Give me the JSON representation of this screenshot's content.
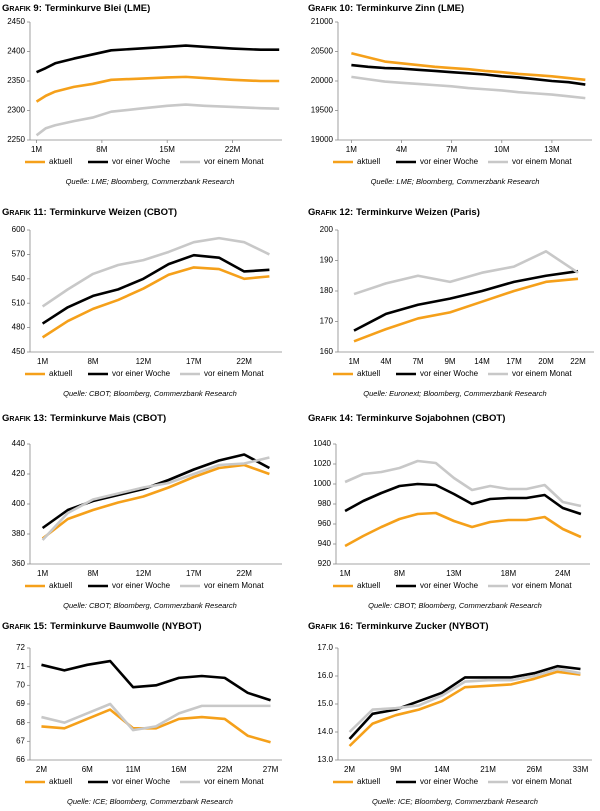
{
  "chart_data": [
    {
      "type": "line",
      "label": "Grafik 9:",
      "title": "Terminkurve Blei (LME)",
      "x": [
        1,
        2,
        3,
        5,
        7,
        9,
        12,
        15,
        17,
        19,
        22,
        25,
        27
      ],
      "xlim": [
        0.3,
        27.3
      ],
      "xticks": [
        {
          "value": 1,
          "label": "1M"
        },
        {
          "value": 8,
          "label": "8M"
        },
        {
          "value": 15,
          "label": "15M"
        },
        {
          "value": 22,
          "label": "22M"
        }
      ],
      "ylim": [
        2250,
        2450
      ],
      "yticks": [
        2250,
        2300,
        2350,
        2400,
        2450
      ],
      "series": [
        {
          "name": "aktuell",
          "color": "#f5a01a",
          "values": [
            2315,
            2325,
            2332,
            2340,
            2345,
            2352,
            2354,
            2356,
            2357,
            2355,
            2352,
            2350,
            2350
          ]
        },
        {
          "name": "vor einer Woche",
          "color": "#000000",
          "values": [
            2365,
            2372,
            2380,
            2388,
            2395,
            2402,
            2405,
            2408,
            2410,
            2408,
            2405,
            2403,
            2403
          ]
        },
        {
          "name": "vor einem Monat",
          "color": "#c8c8c8",
          "values": [
            2258,
            2270,
            2275,
            2282,
            2288,
            2298,
            2303,
            2308,
            2310,
            2308,
            2306,
            2304,
            2303
          ]
        }
      ],
      "source": "Quelle: LME; Bloomberg, Commerzbank Research"
    },
    {
      "type": "line",
      "label": "Grafik 10:",
      "title": "Terminkurve Zinn (LME)",
      "x": [
        1,
        2,
        3,
        4,
        5,
        6,
        7,
        8,
        9,
        10,
        11,
        12,
        13,
        14,
        15
      ],
      "xlim": [
        0.2,
        15.4
      ],
      "xticks": [
        {
          "value": 1,
          "label": "1M"
        },
        {
          "value": 4,
          "label": "4M"
        },
        {
          "value": 7,
          "label": "7M"
        },
        {
          "value": 10,
          "label": "10M"
        },
        {
          "value": 13,
          "label": "13M"
        }
      ],
      "ylim": [
        19000,
        21000
      ],
      "yticks": [
        19000,
        19500,
        20000,
        20500,
        21000
      ],
      "series": [
        {
          "name": "aktuell",
          "color": "#f5a01a",
          "values": [
            20470,
            20400,
            20330,
            20300,
            20270,
            20240,
            20220,
            20200,
            20170,
            20150,
            20120,
            20100,
            20080,
            20050,
            20020
          ]
        },
        {
          "name": "vor einer Woche",
          "color": "#000000",
          "values": [
            20270,
            20240,
            20220,
            20210,
            20190,
            20170,
            20150,
            20130,
            20110,
            20080,
            20060,
            20030,
            20000,
            19980,
            19940
          ]
        },
        {
          "name": "vor einem Monat",
          "color": "#c8c8c8",
          "values": [
            20070,
            20030,
            19990,
            19970,
            19950,
            19930,
            19910,
            19880,
            19860,
            19840,
            19810,
            19790,
            19770,
            19740,
            19710
          ]
        }
      ],
      "source": "Quelle: LME; Bloomberg, Commerzbank Research"
    },
    {
      "type": "line",
      "label": "Grafik 11:",
      "title": "Terminkurve Weizen (CBOT)",
      "categories": [
        "1M",
        null,
        "8M",
        null,
        "12M",
        null,
        "17M",
        null,
        "22M",
        null
      ],
      "ylim": [
        450,
        600
      ],
      "yticks": [
        450,
        480,
        510,
        540,
        570,
        600
      ],
      "series": [
        {
          "name": "aktuell",
          "color": "#f5a01a",
          "values": [
            468,
            488,
            503,
            514,
            528,
            545,
            554,
            552,
            540,
            543
          ]
        },
        {
          "name": "vor einer Woche",
          "color": "#000000",
          "values": [
            485,
            505,
            519,
            527,
            540,
            558,
            569,
            566,
            549,
            551
          ]
        },
        {
          "name": "vor einem Monat",
          "color": "#c8c8c8",
          "values": [
            506,
            527,
            546,
            557,
            563,
            573,
            585,
            590,
            585,
            570
          ]
        }
      ],
      "source": "Quelle: CBOT; Bloomberg, Commerzbank Research"
    },
    {
      "type": "line",
      "label": "Grafik 12:",
      "title": "Terminkurve Weizen (Paris)",
      "categories": [
        "1M",
        "4M",
        "7M",
        "9M",
        "14M",
        "17M",
        "20M",
        "22M"
      ],
      "ylim": [
        160,
        200
      ],
      "yticks": [
        160,
        170,
        180,
        190,
        200
      ],
      "series": [
        {
          "name": "aktuell",
          "color": "#f5a01a",
          "values": [
            163.5,
            167.5,
            171,
            173,
            176.5,
            180,
            183,
            184
          ]
        },
        {
          "name": "vor einer Woche",
          "color": "#000000",
          "values": [
            167,
            172.5,
            175.5,
            177.5,
            180,
            183,
            185,
            186.5
          ]
        },
        {
          "name": "vor einem Monat",
          "color": "#c8c8c8",
          "values": [
            179,
            182.5,
            185,
            183,
            186,
            188,
            193,
            186
          ]
        }
      ],
      "source": "Quelle: Euronext; Bloomberg, Commerzbank Research"
    },
    {
      "type": "line",
      "label": "Grafik 13:",
      "title": "Terminkurve Mais (CBOT)",
      "categories": [
        "1M",
        null,
        "8M",
        null,
        "12M",
        null,
        "17M",
        null,
        "22M",
        null
      ],
      "ylim": [
        360,
        440
      ],
      "yticks": [
        360,
        380,
        400,
        420,
        440
      ],
      "series": [
        {
          "name": "aktuell",
          "color": "#f5a01a",
          "values": [
            377,
            390,
            396,
            401,
            405,
            411,
            418,
            424,
            426,
            420
          ]
        },
        {
          "name": "vor einer Woche",
          "color": "#000000",
          "values": [
            384,
            396,
            402,
            406,
            410,
            416,
            423,
            429,
            433,
            424
          ]
        },
        {
          "name": "vor einem Monat",
          "color": "#c8c8c8",
          "values": [
            376,
            394,
            403,
            407,
            411,
            414,
            420,
            426,
            427,
            431
          ]
        }
      ],
      "source": "Quelle: CBOT; Bloomberg, Commerzbank Research"
    },
    {
      "type": "line",
      "label": "Grafik 14:",
      "title": "Terminkurve Sojabohnen (CBOT)",
      "categories": [
        "1M",
        null,
        null,
        "8M",
        null,
        null,
        "13M",
        null,
        null,
        "18M",
        null,
        null,
        "24M",
        null
      ],
      "ylim": [
        920,
        1040
      ],
      "yticks": [
        920,
        940,
        960,
        980,
        1000,
        1020,
        1040
      ],
      "series": [
        {
          "name": "aktuell",
          "color": "#f5a01a",
          "values": [
            938,
            948,
            957,
            965,
            970,
            971,
            963,
            957,
            962,
            964,
            964,
            967,
            955,
            947
          ]
        },
        {
          "name": "vor einer Woche",
          "color": "#000000",
          "values": [
            973,
            983,
            991,
            998,
            1000,
            999,
            990,
            980,
            985,
            986,
            986,
            989,
            976,
            970
          ]
        },
        {
          "name": "vor einem Monat",
          "color": "#c8c8c8",
          "values": [
            1002,
            1010,
            1012,
            1016,
            1023,
            1021,
            1006,
            994,
            998,
            995,
            995,
            999,
            982,
            978
          ]
        }
      ],
      "source": "Quelle: CBOT; Bloomberg, Commerzbank Research"
    },
    {
      "type": "line",
      "label": "Grafik 15:",
      "title": "Terminkurve Baumwolle (NYBOT)",
      "categories": [
        "2M",
        null,
        "6M",
        null,
        "11M",
        null,
        "16M",
        null,
        "22M",
        null,
        "27M"
      ],
      "ylim": [
        66,
        72
      ],
      "yticks": [
        66,
        67,
        68,
        69,
        70,
        71,
        72
      ],
      "series": [
        {
          "name": "aktuell",
          "color": "#f5a01a",
          "values": [
            67.8,
            67.7,
            68.2,
            68.7,
            67.7,
            67.7,
            68.2,
            68.3,
            68.2,
            67.3,
            66.95
          ]
        },
        {
          "name": "vor einer Woche",
          "color": "#000000",
          "values": [
            71.1,
            70.8,
            71.1,
            71.3,
            69.9,
            70.0,
            70.4,
            70.5,
            70.4,
            69.6,
            69.2
          ]
        },
        {
          "name": "vor einem Monat",
          "color": "#c8c8c8",
          "values": [
            68.3,
            68.0,
            68.5,
            69.0,
            67.6,
            67.8,
            68.5,
            68.9,
            68.9,
            68.9,
            68.9
          ]
        }
      ],
      "source": "Quelle: ICE; Bloomberg, Commerzbank Research"
    },
    {
      "type": "line",
      "label": "Grafik 16:",
      "title": "Terminkurve Zucker (NYBOT)",
      "categories": [
        "2M",
        null,
        "9M",
        null,
        "14M",
        null,
        "21M",
        null,
        "26M",
        null,
        "33M"
      ],
      "ylim": [
        13,
        17
      ],
      "yticks": [
        {
          "value": 13,
          "label": "13.0"
        },
        {
          "value": 14,
          "label": "14.0"
        },
        {
          "value": 15,
          "label": "15.0"
        },
        {
          "value": 16,
          "label": "16.0"
        },
        {
          "value": 17,
          "label": "17.0"
        }
      ],
      "series": [
        {
          "name": "aktuell",
          "color": "#f5a01a",
          "values": [
            13.5,
            14.3,
            14.6,
            14.8,
            15.1,
            15.6,
            15.65,
            15.7,
            15.9,
            16.15,
            16.05
          ]
        },
        {
          "name": "vor einer Woche",
          "color": "#000000",
          "values": [
            13.75,
            14.65,
            14.8,
            15.1,
            15.4,
            15.95,
            15.95,
            15.95,
            16.1,
            16.35,
            16.25
          ]
        },
        {
          "name": "vor einem Monat",
          "color": "#c8c8c8",
          "values": [
            14.0,
            14.8,
            14.85,
            14.95,
            15.3,
            15.8,
            15.85,
            15.85,
            16.0,
            16.25,
            16.1
          ]
        }
      ],
      "source": "Quelle: ICE; Bloomberg, Commerzbank Research"
    }
  ]
}
